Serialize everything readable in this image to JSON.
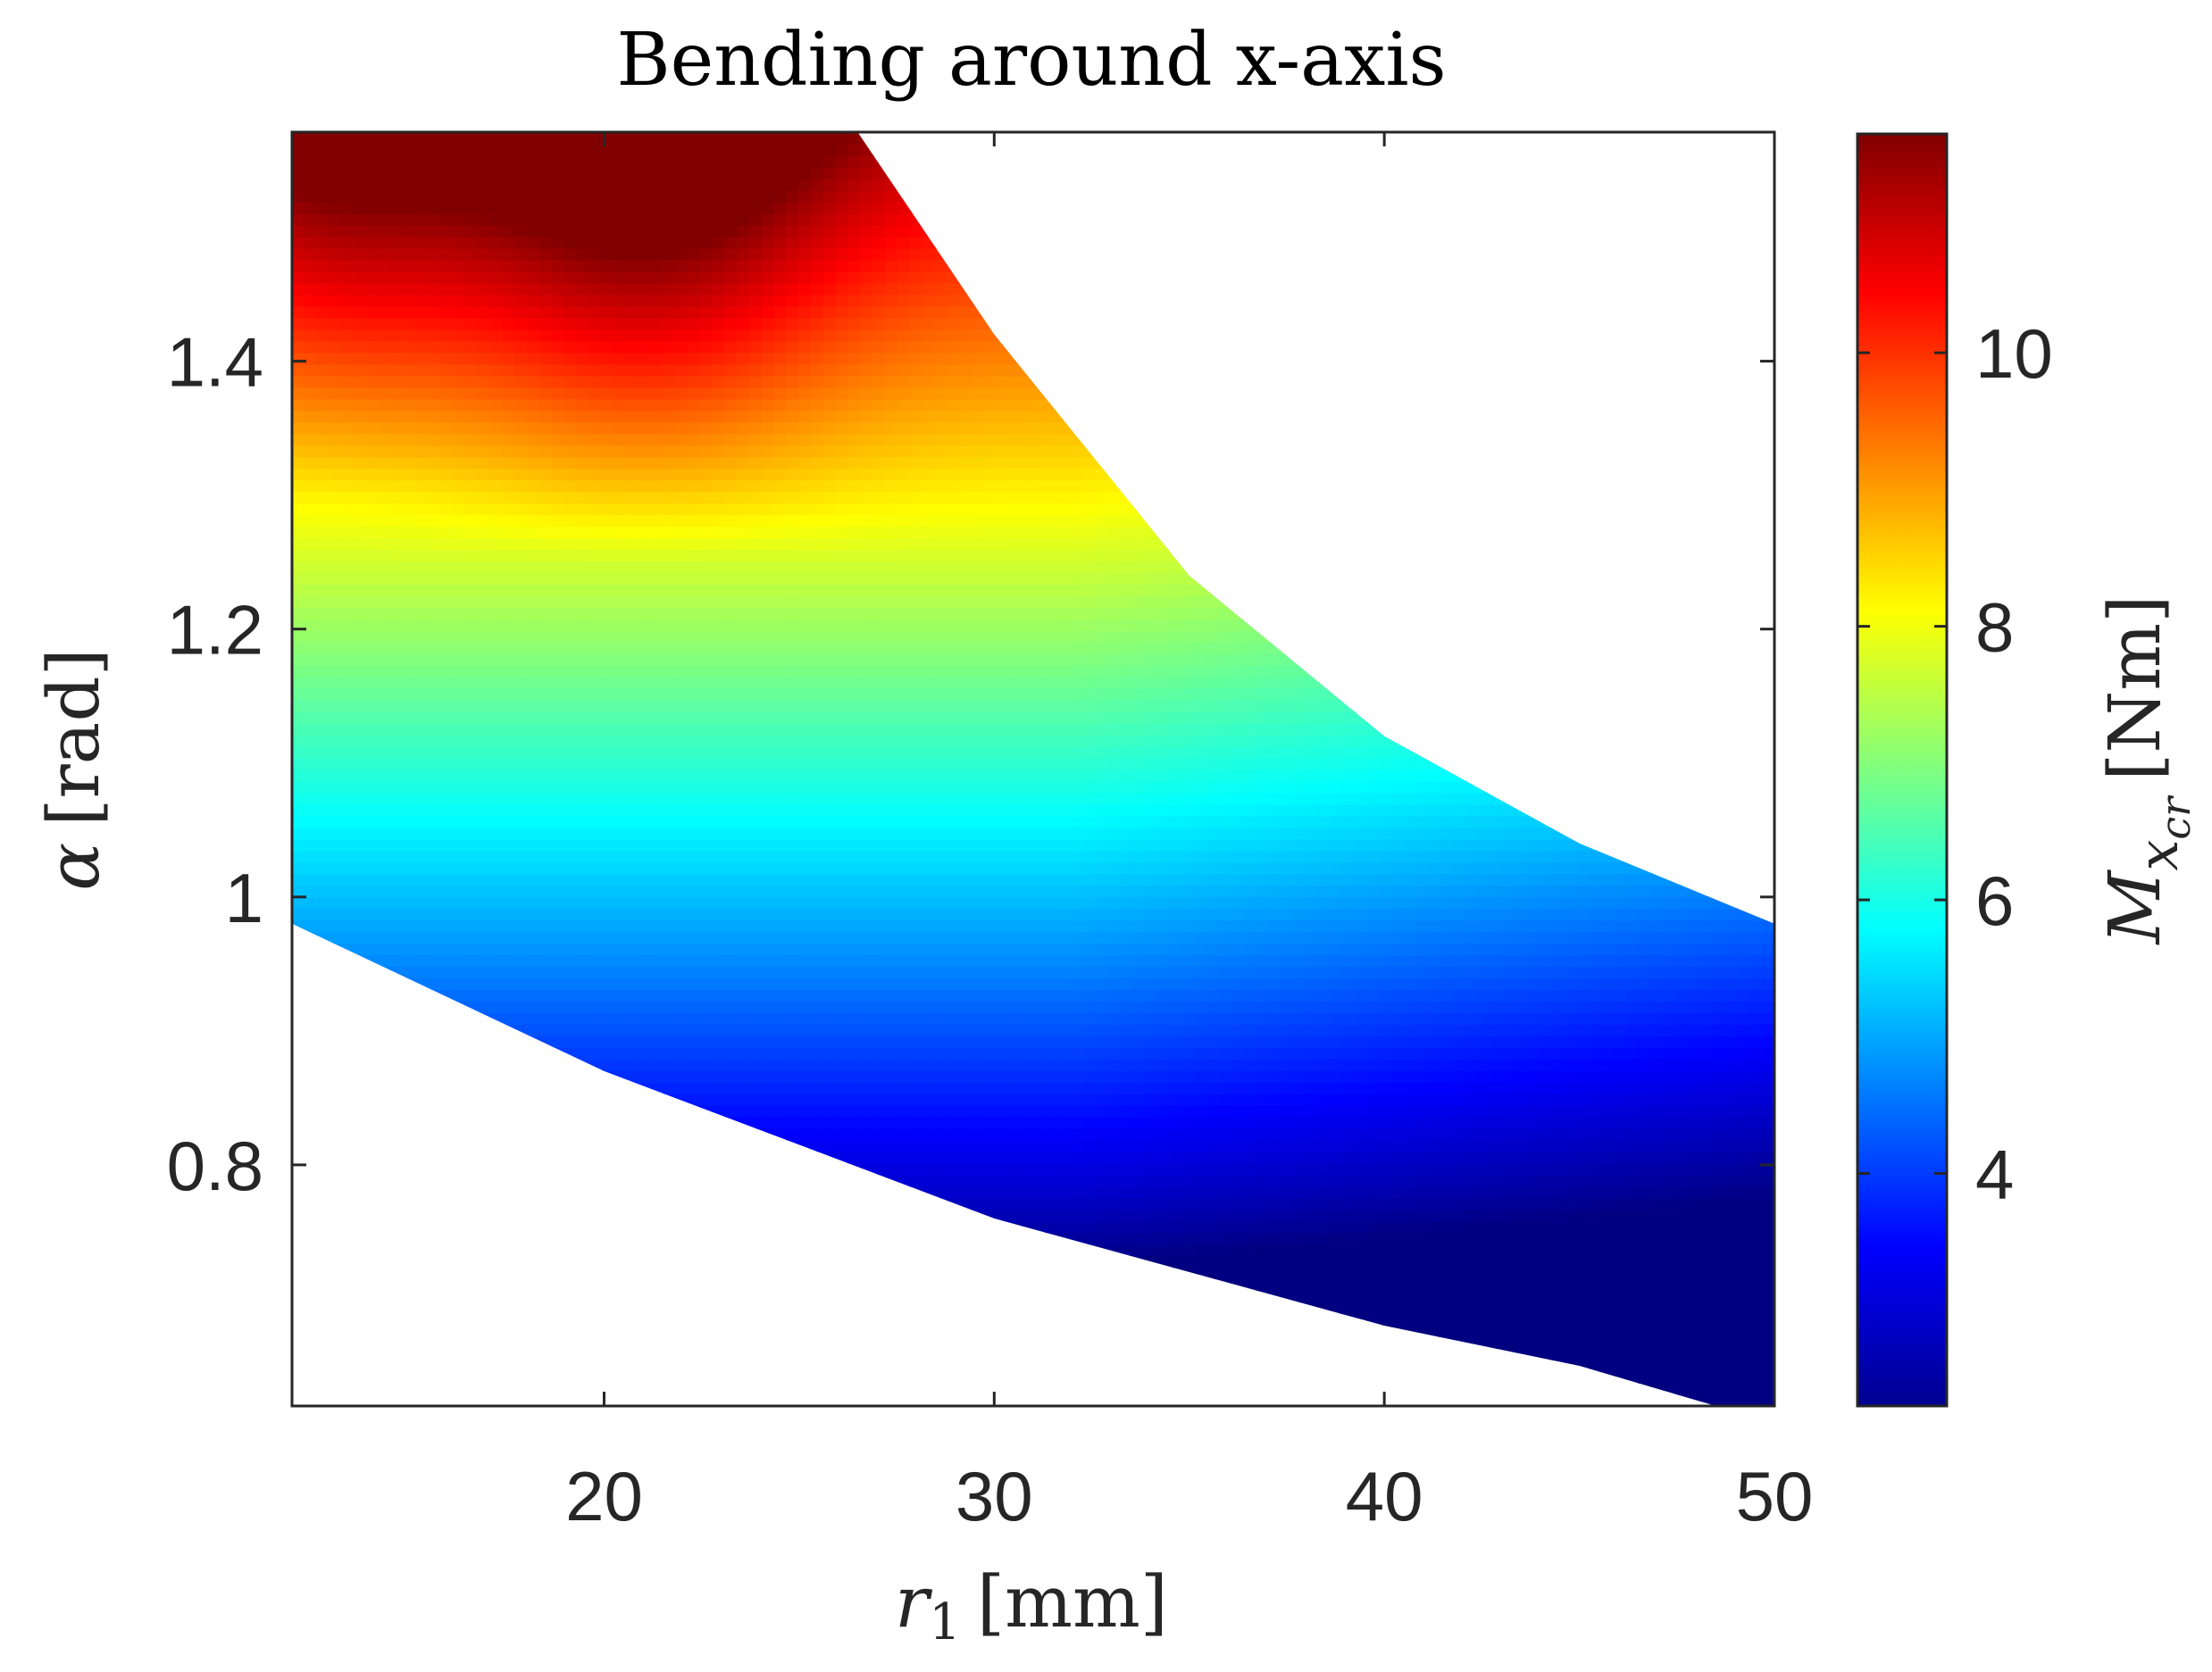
{
  "chart_data": {
    "type": "heatmap",
    "title": "Bending around x-axis",
    "xlabel": {
      "symbol": "r",
      "sub": "1",
      "unit": "[mm]"
    },
    "ylabel": {
      "symbol": "α",
      "unit": "[rad]"
    },
    "colorbar_label": {
      "symbol": "M",
      "sub": "x",
      "subsub": "cr",
      "unit": "[Nm]"
    },
    "xlim": [
      12,
      50
    ],
    "ylim": [
      0.62,
      1.571
    ],
    "clim": [
      2.3,
      11.6
    ],
    "colormap": "jet",
    "x_ticks": [
      "20",
      "30",
      "40",
      "50"
    ],
    "y_ticks": [
      "0.8",
      "1",
      "1.2",
      "1.4"
    ],
    "colorbar_ticks": [
      "4",
      "6",
      "8",
      "10"
    ],
    "region_upper_boundary": [
      [
        12,
        1.571
      ],
      [
        26.5,
        1.571
      ],
      [
        30,
        1.42
      ],
      [
        35,
        1.24
      ],
      [
        40,
        1.12
      ],
      [
        45,
        1.04
      ],
      [
        50,
        0.98
      ]
    ],
    "region_lower_boundary": [
      [
        12,
        0.98
      ],
      [
        20,
        0.87
      ],
      [
        30,
        0.76
      ],
      [
        40,
        0.68
      ],
      [
        45,
        0.65
      ],
      [
        48.5,
        0.62
      ],
      [
        50,
        0.62
      ]
    ],
    "grid": false,
    "legend": "none",
    "colors": {
      "axis": "#262626",
      "background": "#ffffff"
    }
  }
}
